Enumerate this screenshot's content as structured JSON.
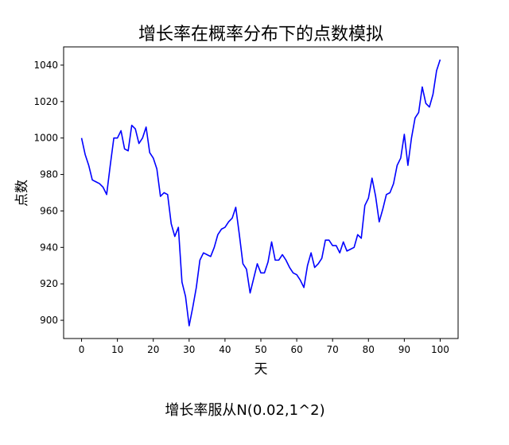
{
  "chart_data": {
    "type": "line",
    "title": "增长率在概率分布下的点数模拟",
    "xlabel": "天",
    "ylabel": "点数",
    "caption": "增长率服从N(0.02,1^2)",
    "xlim": [
      -5,
      105
    ],
    "ylim": [
      890,
      1050
    ],
    "x_ticks": [
      0,
      10,
      20,
      30,
      40,
      50,
      60,
      70,
      80,
      90,
      100
    ],
    "y_ticks": [
      900,
      920,
      940,
      960,
      980,
      1000,
      1020,
      1040
    ],
    "grid": false,
    "line_color": "#0000ff",
    "series": [
      {
        "x": [
          0,
          1,
          2,
          3,
          4,
          5,
          6,
          7,
          8,
          9,
          10,
          11,
          12,
          13,
          14,
          15,
          16,
          17,
          18,
          19,
          20,
          21,
          22,
          23,
          24,
          25,
          26,
          27,
          28,
          29,
          30,
          31,
          32,
          33,
          34,
          35,
          36,
          37,
          38,
          39,
          40,
          41,
          42,
          43,
          44,
          45,
          46,
          47,
          48,
          49,
          50,
          51,
          52,
          53,
          54,
          55,
          56,
          57,
          58,
          59,
          60,
          61,
          62,
          63,
          64,
          65,
          66,
          67,
          68,
          69,
          70,
          71,
          72,
          73,
          74,
          75,
          76,
          77,
          78,
          79,
          80,
          81,
          82,
          83,
          84,
          85,
          86,
          87,
          88,
          89,
          90,
          91,
          92,
          93,
          94,
          95,
          96,
          97,
          98,
          99,
          100
        ],
        "y": [
          1000,
          991,
          985,
          977,
          976,
          975,
          973,
          969,
          985,
          1000,
          1000,
          1004,
          994,
          993,
          1007,
          1005,
          997,
          1000,
          1006,
          992,
          989,
          983,
          968,
          970,
          969,
          953,
          946,
          951,
          921,
          913,
          897,
          907,
          918,
          933,
          937,
          936,
          935,
          940,
          947,
          950,
          951,
          954,
          956,
          962,
          947,
          931,
          928,
          915,
          923,
          931,
          926,
          926,
          932,
          943,
          933,
          933,
          936,
          933,
          929,
          926,
          925,
          922,
          918,
          930,
          937,
          929,
          931,
          934,
          944,
          944,
          941,
          941,
          937,
          943,
          938,
          939,
          940,
          947,
          945,
          963,
          967,
          978,
          968,
          954,
          961,
          969,
          970,
          975,
          985,
          989,
          1002,
          985,
          1000,
          1011,
          1014,
          1028,
          1019,
          1017,
          1024,
          1037,
          1043
        ]
      }
    ]
  }
}
